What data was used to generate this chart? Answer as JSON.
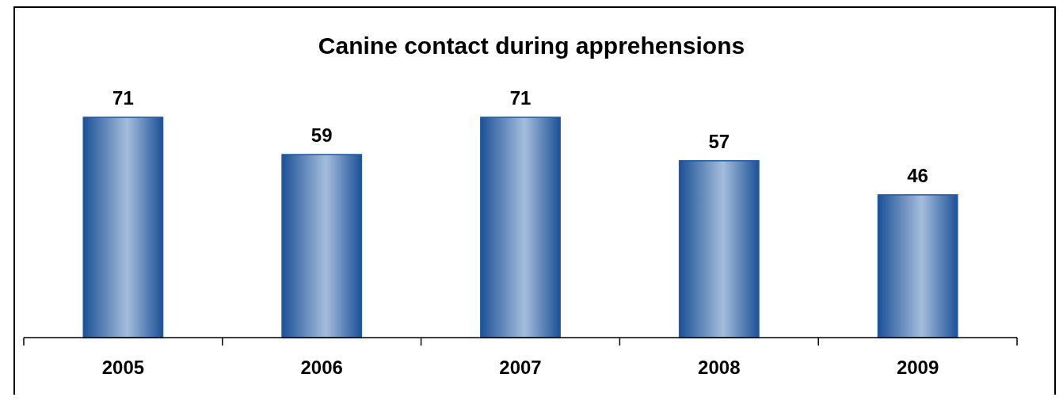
{
  "chart_data": {
    "type": "bar",
    "title": "Canine contact during apprehensions",
    "categories": [
      "2005",
      "2006",
      "2007",
      "2008",
      "2009"
    ],
    "values": [
      71,
      59,
      71,
      57,
      46
    ],
    "color": "#1f5aa8",
    "data_labels": true
  }
}
